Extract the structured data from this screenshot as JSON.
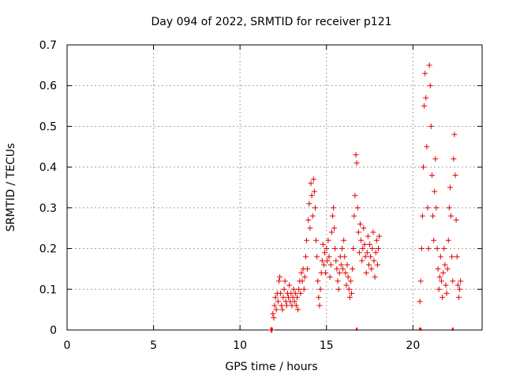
{
  "chart_data": {
    "type": "scatter",
    "title": "Day 094 of 2022, SRMTID for receiver p121",
    "xlabel": "GPS time / hours",
    "ylabel": "SRMTID / TECUs",
    "xlim": [
      0,
      24
    ],
    "ylim": [
      0,
      0.7
    ],
    "xticks": [
      0,
      5,
      10,
      15,
      20
    ],
    "xtick_labels": [
      "0",
      "5",
      "10",
      "15",
      "20"
    ],
    "yticks": [
      0,
      0.1,
      0.2,
      0.3,
      0.4,
      0.5,
      0.6,
      0.7
    ],
    "ytick_labels": [
      "0",
      "0.1",
      "0.2",
      "0.3",
      "0.4",
      "0.5",
      "0.6",
      "0.7"
    ],
    "grid": true,
    "marker": "+",
    "marker_color": "#e00000",
    "series": [
      {
        "name": "SRMTID",
        "points": [
          [
            11.8,
            0.0
          ],
          [
            11.85,
            0.0
          ],
          [
            11.9,
            0.04
          ],
          [
            11.95,
            0.03
          ],
          [
            12.0,
            0.06
          ],
          [
            12.05,
            0.08
          ],
          [
            12.1,
            0.05
          ],
          [
            12.15,
            0.09
          ],
          [
            12.2,
            0.07
          ],
          [
            12.25,
            0.12
          ],
          [
            12.3,
            0.13
          ],
          [
            12.35,
            0.09
          ],
          [
            12.4,
            0.06
          ],
          [
            12.45,
            0.05
          ],
          [
            12.5,
            0.08
          ],
          [
            12.55,
            0.1
          ],
          [
            12.6,
            0.12
          ],
          [
            12.65,
            0.07
          ],
          [
            12.7,
            0.06
          ],
          [
            12.75,
            0.09
          ],
          [
            12.8,
            0.08
          ],
          [
            12.85,
            0.11
          ],
          [
            12.9,
            0.07
          ],
          [
            12.95,
            0.09
          ],
          [
            13.0,
            0.06
          ],
          [
            13.05,
            0.08
          ],
          [
            13.1,
            0.1
          ],
          [
            13.15,
            0.07
          ],
          [
            13.2,
            0.09
          ],
          [
            13.25,
            0.06
          ],
          [
            13.3,
            0.08
          ],
          [
            13.35,
            0.05
          ],
          [
            13.4,
            0.1
          ],
          [
            13.45,
            0.12
          ],
          [
            13.5,
            0.09
          ],
          [
            13.55,
            0.14
          ],
          [
            13.6,
            0.12
          ],
          [
            13.65,
            0.15
          ],
          [
            13.7,
            0.1
          ],
          [
            13.75,
            0.13
          ],
          [
            13.8,
            0.18
          ],
          [
            13.85,
            0.22
          ],
          [
            13.9,
            0.15
          ],
          [
            13.95,
            0.27
          ],
          [
            14.0,
            0.31
          ],
          [
            14.05,
            0.25
          ],
          [
            14.1,
            0.36
          ],
          [
            14.15,
            0.33
          ],
          [
            14.2,
            0.28
          ],
          [
            14.25,
            0.37
          ],
          [
            14.3,
            0.34
          ],
          [
            14.35,
            0.3
          ],
          [
            14.4,
            0.22
          ],
          [
            14.45,
            0.18
          ],
          [
            14.5,
            0.12
          ],
          [
            14.55,
            0.08
          ],
          [
            14.6,
            0.06
          ],
          [
            14.65,
            0.1
          ],
          [
            14.7,
            0.14
          ],
          [
            14.75,
            0.17
          ],
          [
            14.8,
            0.21
          ],
          [
            14.85,
            0.16
          ],
          [
            14.9,
            0.19
          ],
          [
            14.95,
            0.14
          ],
          [
            15.0,
            0.2
          ],
          [
            15.05,
            0.17
          ],
          [
            15.1,
            0.22
          ],
          [
            15.15,
            0.18
          ],
          [
            15.2,
            0.13
          ],
          [
            15.25,
            0.16
          ],
          [
            15.3,
            0.24
          ],
          [
            15.35,
            0.28
          ],
          [
            15.4,
            0.3
          ],
          [
            15.45,
            0.25
          ],
          [
            15.5,
            0.2
          ],
          [
            15.55,
            0.17
          ],
          [
            15.6,
            0.15
          ],
          [
            15.65,
            0.12
          ],
          [
            15.7,
            0.1
          ],
          [
            15.75,
            0.14
          ],
          [
            15.8,
            0.18
          ],
          [
            15.85,
            0.16
          ],
          [
            15.9,
            0.2
          ],
          [
            15.95,
            0.15
          ],
          [
            16.0,
            0.22
          ],
          [
            16.05,
            0.18
          ],
          [
            16.1,
            0.14
          ],
          [
            16.15,
            0.11
          ],
          [
            16.2,
            0.16
          ],
          [
            16.25,
            0.13
          ],
          [
            16.3,
            0.1
          ],
          [
            16.35,
            0.08
          ],
          [
            16.4,
            0.12
          ],
          [
            16.45,
            0.09
          ],
          [
            16.5,
            0.15
          ],
          [
            16.55,
            0.2
          ],
          [
            16.6,
            0.28
          ],
          [
            16.65,
            0.33
          ],
          [
            16.7,
            0.43
          ],
          [
            16.75,
            0.41
          ],
          [
            16.8,
            0.3
          ],
          [
            16.85,
            0.24
          ],
          [
            16.9,
            0.19
          ],
          [
            16.95,
            0.26
          ],
          [
            17.0,
            0.22
          ],
          [
            17.05,
            0.17
          ],
          [
            17.1,
            0.2
          ],
          [
            17.15,
            0.25
          ],
          [
            17.2,
            0.21
          ],
          [
            17.25,
            0.18
          ],
          [
            17.3,
            0.14
          ],
          [
            17.35,
            0.19
          ],
          [
            17.4,
            0.23
          ],
          [
            17.45,
            0.16
          ],
          [
            17.5,
            0.21
          ],
          [
            17.55,
            0.18
          ],
          [
            17.6,
            0.15
          ],
          [
            17.65,
            0.2
          ],
          [
            17.7,
            0.24
          ],
          [
            17.75,
            0.17
          ],
          [
            17.8,
            0.13
          ],
          [
            17.85,
            0.19
          ],
          [
            17.9,
            0.22
          ],
          [
            17.95,
            0.16
          ],
          [
            18.0,
            0.2
          ],
          [
            18.05,
            0.23
          ],
          [
            20.4,
            0.07
          ],
          [
            20.45,
            0.12
          ],
          [
            20.5,
            0.2
          ],
          [
            20.55,
            0.28
          ],
          [
            20.6,
            0.4
          ],
          [
            20.65,
            0.55
          ],
          [
            20.7,
            0.63
          ],
          [
            20.75,
            0.57
          ],
          [
            20.8,
            0.45
          ],
          [
            20.85,
            0.3
          ],
          [
            20.9,
            0.2
          ],
          [
            20.95,
            0.65
          ],
          [
            21.0,
            0.6
          ],
          [
            21.05,
            0.5
          ],
          [
            21.1,
            0.38
          ],
          [
            21.15,
            0.28
          ],
          [
            21.2,
            0.22
          ],
          [
            21.25,
            0.34
          ],
          [
            21.3,
            0.42
          ],
          [
            21.35,
            0.3
          ],
          [
            21.4,
            0.2
          ],
          [
            21.45,
            0.15
          ],
          [
            21.5,
            0.1
          ],
          [
            21.55,
            0.13
          ],
          [
            21.6,
            0.18
          ],
          [
            21.65,
            0.12
          ],
          [
            21.7,
            0.08
          ],
          [
            21.75,
            0.14
          ],
          [
            21.8,
            0.2
          ],
          [
            21.85,
            0.16
          ],
          [
            21.9,
            0.11
          ],
          [
            21.95,
            0.09
          ],
          [
            22.0,
            0.15
          ],
          [
            22.05,
            0.22
          ],
          [
            22.1,
            0.3
          ],
          [
            22.15,
            0.35
          ],
          [
            22.2,
            0.28
          ],
          [
            22.25,
            0.18
          ],
          [
            22.3,
            0.12
          ],
          [
            22.35,
            0.42
          ],
          [
            22.4,
            0.48
          ],
          [
            22.45,
            0.38
          ],
          [
            22.5,
            0.27
          ],
          [
            22.55,
            0.18
          ],
          [
            22.6,
            0.11
          ],
          [
            22.65,
            0.08
          ],
          [
            22.7,
            0.1
          ],
          [
            22.75,
            0.12
          ]
        ]
      }
    ],
    "zero_markers": [
      11.8,
      11.85,
      16.75,
      20.4,
      20.45,
      22.3
    ]
  }
}
